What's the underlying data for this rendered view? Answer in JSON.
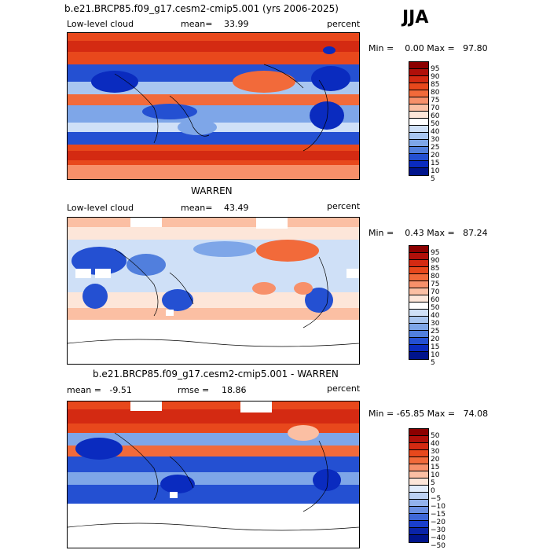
{
  "season": "JJA",
  "panels": [
    {
      "title": "b.e21.BRCP85.f09_g17.cesm2-cmip5.001 (yrs 2006-2025)",
      "left_label": "Low-level cloud",
      "stat_label": "mean=",
      "stat_value": "33.99",
      "units": "percent",
      "range_text": "Min =    0.00 Max =   97.80",
      "colorbar_labels": [
        "95",
        "90",
        "85",
        "80",
        "75",
        "70",
        "60",
        "50",
        "40",
        "30",
        "25",
        "20",
        "15",
        "10",
        "5"
      ]
    },
    {
      "title": "WARREN",
      "left_label": "Low-level cloud",
      "stat_label": "mean=",
      "stat_value": "43.49",
      "units": "percent",
      "range_text": "Min =    0.43 Max =   87.24",
      "colorbar_labels": [
        "95",
        "90",
        "85",
        "80",
        "75",
        "70",
        "60",
        "50",
        "40",
        "30",
        "25",
        "20",
        "15",
        "10",
        "5"
      ]
    },
    {
      "title": "b.e21.BRCP85.f09_g17.cesm2-cmip5.001 - WARREN",
      "left_label": "mean =   -9.51",
      "stat_label": "rmse =",
      "stat_value": "18.86",
      "units": "percent",
      "range_text": "Min = -65.85 Max =   74.08",
      "colorbar_labels": [
        "50",
        "40",
        "30",
        "20",
        "15",
        "10",
        "5",
        "0",
        "−5",
        "−10",
        "−15",
        "−20",
        "−30",
        "−40",
        "−50"
      ]
    }
  ],
  "colors": {
    "abs_scale": [
      "#8b0000",
      "#b0100a",
      "#d42a12",
      "#e8481c",
      "#f26a3a",
      "#f7906a",
      "#fbbfa3",
      "#fde6d9",
      "#ffffff",
      "#cfe0f7",
      "#a9c6f0",
      "#7ea6e8",
      "#517fdd",
      "#2450d2",
      "#0a2bbf",
      "#00148c"
    ],
    "diff_scale": [
      "#8b0000",
      "#b0100a",
      "#d42a12",
      "#e8481c",
      "#f26a3a",
      "#f7906a",
      "#fbbfa3",
      "#fde6d9",
      "#e2ecfb",
      "#bcd1f3",
      "#93b2ec",
      "#6b90e3",
      "#3f68d8",
      "#1a3fcc",
      "#0a24a8",
      "#00148c"
    ]
  }
}
